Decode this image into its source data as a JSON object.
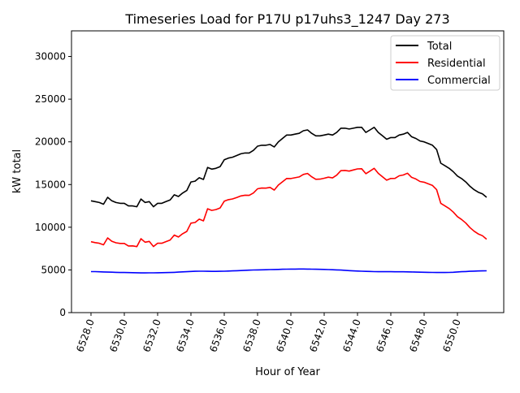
{
  "chart_data": {
    "type": "line",
    "title": "Timeseries Load for P17U p17uhs3_1247  Day 273",
    "xlabel": "Hour of Year",
    "ylabel": "kW total",
    "xlim": [
      6526.83,
      6552.78
    ],
    "ylim": [
      0,
      33000
    ],
    "x_start": 6528,
    "x_step": 0.25,
    "xticks": [
      6528,
      6530,
      6532,
      6534,
      6536,
      6538,
      6540,
      6542,
      6544,
      6546,
      6548,
      6550
    ],
    "xtick_labels": [
      "6528.0",
      "6530.0",
      "6532.0",
      "6534.0",
      "6536.0",
      "6538.0",
      "6540.0",
      "6542.0",
      "6544.0",
      "6546.0",
      "6548.0",
      "6550.0"
    ],
    "yticks": [
      0,
      5000,
      10000,
      15000,
      20000,
      25000,
      30000
    ],
    "ytick_labels": [
      "0",
      "5000",
      "10000",
      "15000",
      "20000",
      "25000",
      "30000"
    ],
    "grid": false,
    "legend_placement": "top-right",
    "series": [
      {
        "name": "Total",
        "color": "#000000",
        "values": [
          13100,
          13000,
          12900,
          12700,
          13500,
          13100,
          12900,
          12800,
          12800,
          12500,
          12500,
          12400,
          13300,
          12900,
          13000,
          12400,
          12800,
          12800,
          13000,
          13200,
          13800,
          13600,
          14000,
          14300,
          15300,
          15400,
          15800,
          15600,
          17000,
          16800,
          16900,
          17100,
          17900,
          18100,
          18200,
          18400,
          18600,
          18700,
          18700,
          19000,
          19500,
          19600,
          19600,
          19700,
          19400,
          20000,
          20400,
          20800,
          20800,
          20900,
          21000,
          21300,
          21400,
          21000,
          20700,
          20700,
          20800,
          20900,
          20800,
          21100,
          21600,
          21600,
          21500,
          21600,
          21700,
          21700,
          21100,
          21400,
          21700,
          21100,
          20700,
          20300,
          20500,
          20500,
          20800,
          20900,
          21100,
          20600,
          20400,
          20100,
          20000,
          19800,
          19600,
          19100,
          17500,
          17200,
          16900,
          16500,
          16000,
          15700,
          15300,
          14800,
          14400,
          14100,
          13900,
          13500
        ]
      },
      {
        "name": "Residential",
        "color": "#ff0000",
        "values": [
          8300,
          8200,
          8120,
          7940,
          8750,
          8360,
          8180,
          8100,
          8100,
          7810,
          7820,
          7730,
          8650,
          8250,
          8340,
          7740,
          8130,
          8120,
          8310,
          8500,
          9080,
          8850,
          9230,
          9510,
          10480,
          10560,
          10950,
          10750,
          12160,
          11970,
          12070,
          12260,
          13050,
          13230,
          13310,
          13490,
          13670,
          13750,
          13730,
          14010,
          14500,
          14590,
          14580,
          14660,
          14350,
          14940,
          15320,
          15710,
          15700,
          15800,
          15890,
          16190,
          16300,
          15910,
          15620,
          15630,
          15740,
          15860,
          15780,
          16100,
          16620,
          16650,
          16580,
          16710,
          16830,
          16850,
          16270,
          16580,
          16900,
          16310,
          15910,
          15510,
          15710,
          15720,
          16020,
          16120,
          16330,
          15840,
          15650,
          15360,
          15270,
          15080,
          14890,
          14400,
          12800,
          12500,
          12190,
          11770,
          11240,
          10910,
          10490,
          9960,
          9540,
          9220,
          9010,
          8600
        ]
      },
      {
        "name": "Commercial",
        "color": "#0000ff",
        "values": [
          4800,
          4800,
          4780,
          4760,
          4750,
          4740,
          4720,
          4700,
          4700,
          4690,
          4680,
          4670,
          4650,
          4650,
          4660,
          4660,
          4670,
          4680,
          4690,
          4700,
          4720,
          4750,
          4770,
          4790,
          4820,
          4840,
          4850,
          4850,
          4840,
          4830,
          4830,
          4840,
          4850,
          4870,
          4890,
          4910,
          4930,
          4950,
          4970,
          4990,
          5000,
          5010,
          5020,
          5040,
          5050,
          5060,
          5080,
          5090,
          5100,
          5100,
          5110,
          5110,
          5100,
          5090,
          5080,
          5070,
          5060,
          5040,
          5020,
          5000,
          4980,
          4950,
          4920,
          4890,
          4870,
          4850,
          4830,
          4820,
          4800,
          4790,
          4790,
          4790,
          4790,
          4780,
          4780,
          4780,
          4770,
          4760,
          4750,
          4740,
          4730,
          4720,
          4710,
          4700,
          4700,
          4700,
          4710,
          4730,
          4760,
          4790,
          4810,
          4840,
          4860,
          4880,
          4890,
          4900
        ]
      }
    ]
  }
}
